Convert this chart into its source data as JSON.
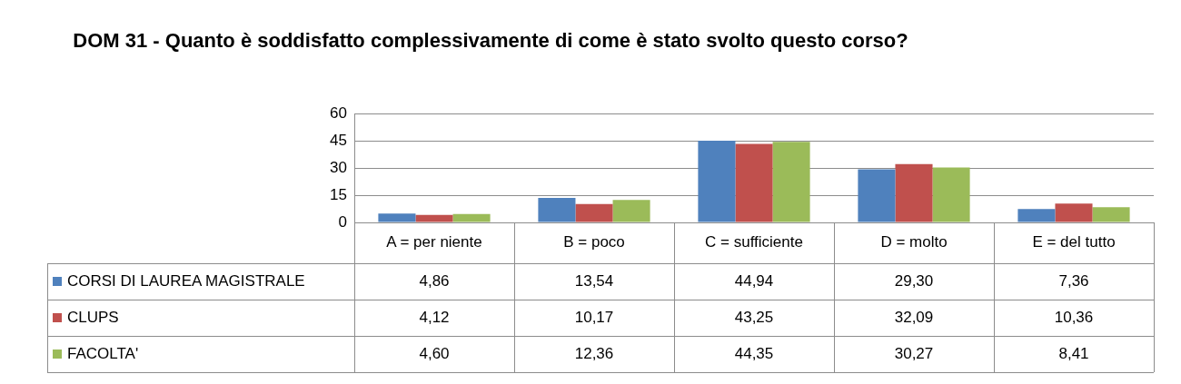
{
  "chart_data": {
    "type": "bar",
    "title": "DOM  31 - Quanto è soddisfatto complessivamente di come è stato svolto questo corso?",
    "categories": [
      "A = per niente",
      "B = poco",
      "C = sufficiente",
      "D = molto",
      "E = del tutto"
    ],
    "series": [
      {
        "name": "CORSI DI LAUREA MAGISTRALE",
        "color": "#4f81bd",
        "values": [
          4.86,
          13.54,
          44.94,
          29.3,
          7.36
        ],
        "value_labels": [
          "4,86",
          "13,54",
          "44,94",
          "29,30",
          "7,36"
        ]
      },
      {
        "name": "CLUPS",
        "color": "#c0504d",
        "values": [
          4.12,
          10.17,
          43.25,
          32.09,
          10.36
        ],
        "value_labels": [
          "4,12",
          "10,17",
          "43,25",
          "32,09",
          "10,36"
        ]
      },
      {
        "name": "FACOLTA'",
        "color": "#9bbb59",
        "values": [
          4.6,
          12.36,
          44.35,
          30.27,
          8.41
        ],
        "value_labels": [
          "4,60",
          "12,36",
          "44,35",
          "30,27",
          "8,41"
        ]
      }
    ],
    "ylim": [
      0,
      60
    ],
    "yticks": [
      0,
      15,
      30,
      45,
      60
    ],
    "grid": "y",
    "legend": "bottom left"
  }
}
